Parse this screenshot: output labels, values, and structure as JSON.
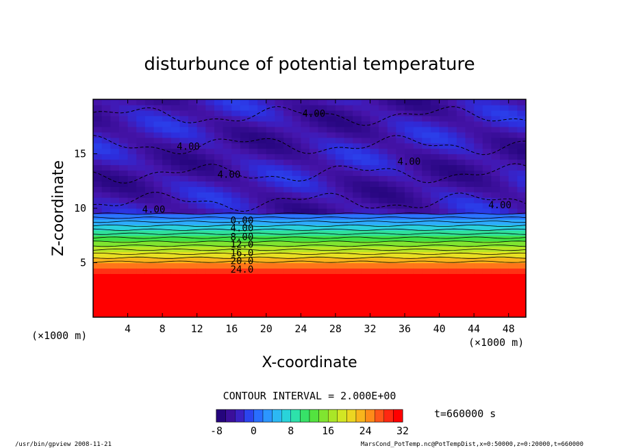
{
  "chart_data": {
    "type": "heatmap",
    "title": "disturbunce of potential temperature",
    "xlabel": "X-coordinate",
    "ylabel": "Z-coordinate",
    "x_unit": "(×1000 m)",
    "z_unit": "(×1000 m)",
    "xlim": [
      0,
      50
    ],
    "ylim": [
      0,
      20
    ],
    "x_ticks": [
      4,
      8,
      12,
      16,
      20,
      24,
      28,
      32,
      36,
      40,
      44,
      48
    ],
    "y_ticks": [
      5,
      10,
      15
    ],
    "colorbar": {
      "range": [
        -8,
        32
      ],
      "ticks": [
        -8,
        0,
        8,
        16,
        24,
        32
      ]
    },
    "contour_interval_label": "CONTOUR INTERVAL = 2.000E+00",
    "time_label": "t=660000  s",
    "contour_labels": [
      {
        "text": "4.00",
        "x": 25.5,
        "z": 18.7
      },
      {
        "text": "4.00",
        "x": 11.0,
        "z": 15.7
      },
      {
        "text": "4.00",
        "x": 15.7,
        "z": 13.1
      },
      {
        "text": "4.00",
        "x": 36.5,
        "z": 14.3
      },
      {
        "text": "4.00",
        "x": 7.0,
        "z": 9.9
      },
      {
        "text": "4.00",
        "x": 47.0,
        "z": 10.3
      },
      {
        "text": "0.00",
        "x": 17.2,
        "z": 8.9
      },
      {
        "text": "4.00",
        "x": 17.2,
        "z": 8.2
      },
      {
        "text": "8.00",
        "x": 17.2,
        "z": 7.4
      },
      {
        "text": "12.0",
        "x": 17.2,
        "z": 6.7
      },
      {
        "text": "16.0",
        "x": 17.2,
        "z": 5.9
      },
      {
        "text": "20.0",
        "x": 17.2,
        "z": 5.2
      },
      {
        "text": "24.0",
        "x": 17.2,
        "z": 4.4
      }
    ],
    "field": {
      "stratosphere_value": -4,
      "surface_value": 31,
      "transition_top": 9.5,
      "transition_bottom": 3.8
    }
  },
  "footer": {
    "left": "/usr/bin/gpview   2008-11-21",
    "right": "MarsCond_PotTemp.nc@PotTempDist,x=0:50000,z=0:20000,t=660000"
  }
}
